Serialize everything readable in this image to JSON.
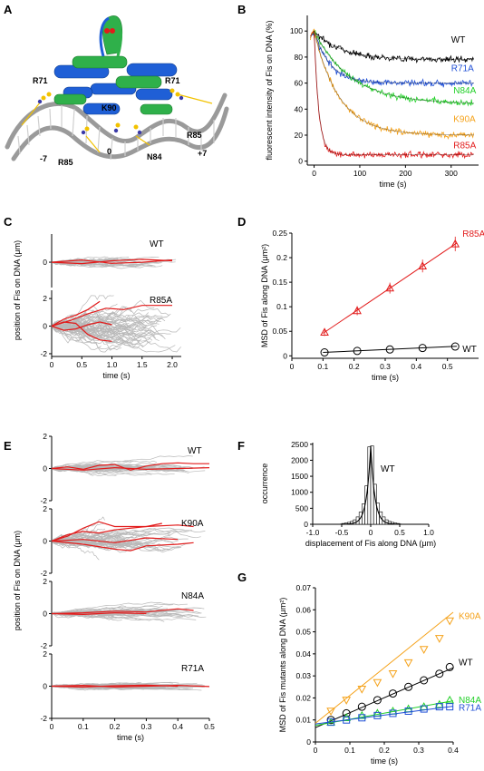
{
  "panels": {
    "A": {
      "label": "A",
      "structure_tags": [
        "R71",
        "R71",
        "K90",
        "R85",
        "-7",
        "R85",
        "0",
        "N84",
        "+7"
      ]
    },
    "B": {
      "label": "B"
    },
    "C": {
      "label": "C"
    },
    "D": {
      "label": "D"
    },
    "E": {
      "label": "E"
    },
    "F": {
      "label": "F"
    },
    "G": {
      "label": "G"
    }
  },
  "chart_data": [
    {
      "id": "B",
      "type": "line",
      "xlabel": "time (s)",
      "ylabel": "fluorescent intensity of Fis on DNA (%)",
      "xlim": [
        -15,
        360
      ],
      "ylim": [
        -3,
        112
      ],
      "xticks": [
        0,
        100,
        200,
        300
      ],
      "yticks": [
        0,
        20,
        40,
        60,
        80,
        100
      ],
      "series": [
        {
          "name": "WT",
          "color": "#000000",
          "label_x": 300,
          "label_y": 91,
          "plateau": 78,
          "tau": 60,
          "x": [
            0,
            20,
            50,
            100,
            150,
            200,
            250,
            300,
            350
          ],
          "y": [
            100,
            94,
            88,
            82,
            80,
            79,
            78,
            78,
            77
          ]
        },
        {
          "name": "R71A",
          "color": "#1f4fd6",
          "label_x": 300,
          "label_y": 69,
          "plateau": 60,
          "tau": 35,
          "x": [
            0,
            20,
            50,
            100,
            150,
            200,
            250,
            300,
            350
          ],
          "y": [
            100,
            86,
            72,
            64,
            62,
            61,
            60,
            60,
            60
          ]
        },
        {
          "name": "N84A",
          "color": "#22d028",
          "label_x": 305,
          "label_y": 52,
          "plateau": 44,
          "tau": 80,
          "x": [
            0,
            20,
            50,
            100,
            150,
            200,
            250,
            300,
            350
          ],
          "y": [
            100,
            88,
            72,
            58,
            52,
            49,
            47,
            46,
            45
          ]
        },
        {
          "name": "K90A",
          "color": "#f5a21a",
          "label_x": 305,
          "label_y": 30,
          "plateau": 20,
          "tau": 55,
          "x": [
            0,
            20,
            50,
            100,
            150,
            200,
            250,
            300,
            350
          ],
          "y": [
            100,
            70,
            45,
            32,
            27,
            24,
            22,
            21,
            20
          ]
        },
        {
          "name": "R85A",
          "color": "#e21b1b",
          "label_x": 305,
          "label_y": 10,
          "plateau": 5,
          "tau": 10,
          "x": [
            0,
            20,
            50,
            100,
            150,
            200,
            250,
            300,
            350
          ],
          "y": [
            100,
            28,
            10,
            6,
            5,
            5,
            5,
            5,
            5
          ]
        }
      ]
    },
    {
      "id": "C-WT",
      "type": "line",
      "series_label": "WT",
      "xlim": [
        0,
        2.15
      ],
      "ylim": [
        -0.9,
        1.0
      ],
      "yticks": [
        -2,
        0,
        2
      ],
      "ytick_labels": [
        "",
        "0",
        ""
      ],
      "spread": 0.12,
      "red_traces": [
        {
          "x": [
            0,
            0.5,
            1.0,
            1.5,
            2.0
          ],
          "y": [
            0,
            -0.05,
            0.05,
            0.1,
            0.05
          ]
        },
        {
          "x": [
            0,
            0.5,
            1.0,
            1.5,
            2.0
          ],
          "y": [
            0,
            0.08,
            -0.04,
            0.0,
            0.08
          ]
        }
      ]
    },
    {
      "id": "C-R85A",
      "type": "line",
      "series_label": "R85A",
      "xlabel": "time (s)",
      "ylabel": "position of Fis on DNA (μm)",
      "xlim": [
        0,
        2.15
      ],
      "ylim": [
        -2.2,
        2.6
      ],
      "xticks": [
        0,
        0.5,
        1.0,
        1.5,
        2.0
      ],
      "xtick_labels": [
        "0",
        "0.5",
        "1.0",
        "1.5",
        "2.0"
      ],
      "yticks": [
        -2,
        0,
        2
      ],
      "spread": 0.9,
      "red_traces": [
        {
          "x": [
            0,
            0.3,
            0.6,
            0.9,
            1.2,
            1.5,
            2.0
          ],
          "y": [
            0,
            0.4,
            0.9,
            1.3,
            1.2,
            1.5,
            1.5
          ]
        },
        {
          "x": [
            0,
            0.2,
            0.4,
            0.6,
            0.8,
            1.0
          ],
          "y": [
            0,
            0.3,
            0.2,
            -0.6,
            -1.0,
            -1.1
          ]
        },
        {
          "x": [
            0,
            0.2,
            0.4,
            0.6,
            0.8
          ],
          "y": [
            0,
            0.5,
            0.8,
            1.2,
            1.8
          ]
        },
        {
          "x": [
            0,
            0.2,
            0.4,
            0.6,
            0.8,
            1.0
          ],
          "y": [
            0,
            -0.3,
            -0.2,
            0.1,
            0.3,
            0.1
          ]
        }
      ]
    },
    {
      "id": "D",
      "type": "scatter",
      "xlabel": "time (s)",
      "ylabel": "MSD of Fis along DNA (μm²)",
      "xlim": [
        0,
        0.6
      ],
      "ylim": [
        -0.005,
        0.25
      ],
      "xticks": [
        0,
        0.1,
        0.2,
        0.3,
        0.4,
        0.5
      ],
      "yticks": [
        0,
        0.05,
        0.1,
        0.15,
        0.2,
        0.25
      ],
      "series": [
        {
          "name": "R85A",
          "color": "#e21b1b",
          "marker": "triangle",
          "x": [
            0.105,
            0.21,
            0.315,
            0.42,
            0.525
          ],
          "y": [
            0.048,
            0.092,
            0.138,
            0.183,
            0.228
          ],
          "fit": [
            0.003,
            0.428
          ]
        },
        {
          "name": "WT",
          "color": "#000000",
          "marker": "circle",
          "x": [
            0.105,
            0.21,
            0.315,
            0.42,
            0.525
          ],
          "y": [
            0.007,
            0.01,
            0.013,
            0.016,
            0.019
          ],
          "fit": [
            0.004,
            0.029
          ]
        }
      ]
    },
    {
      "id": "E-WT",
      "type": "line",
      "series_label": "WT",
      "xlim": [
        0,
        0.5
      ],
      "ylim": [
        -2,
        2
      ],
      "yticks": [
        -2,
        0,
        2
      ],
      "spread": 0.22,
      "red_traces": [
        {
          "x": [
            0,
            0.05,
            0.1,
            0.15,
            0.2,
            0.25,
            0.3,
            0.35,
            0.4,
            0.45,
            0.5
          ],
          "y": [
            0,
            0.1,
            -0.05,
            0.2,
            0.25,
            -0.1,
            0.15,
            0.3,
            0.35,
            0.3,
            0.3
          ]
        },
        {
          "x": [
            0,
            0.1,
            0.2,
            0.3,
            0.4,
            0.5
          ],
          "y": [
            0,
            -0.1,
            0.05,
            -0.05,
            0.0,
            0.05
          ]
        }
      ]
    },
    {
      "id": "E-K90A",
      "type": "line",
      "series_label": "K90A",
      "xlim": [
        0,
        0.5
      ],
      "ylim": [
        -2,
        2
      ],
      "yticks": [
        -2,
        0,
        2
      ],
      "spread": 0.45,
      "red_traces": [
        {
          "x": [
            0,
            0.05,
            0.1,
            0.15,
            0.2,
            0.3,
            0.4,
            0.45
          ],
          "y": [
            0,
            0.4,
            0.6,
            0.5,
            0.7,
            0.9,
            1.0,
            0.9
          ]
        },
        {
          "x": [
            0,
            0.05,
            0.1,
            0.15,
            0.2,
            0.3,
            0.35
          ],
          "y": [
            0,
            0.3,
            0.8,
            1.2,
            0.9,
            0.9,
            1.1
          ]
        },
        {
          "x": [
            0,
            0.1,
            0.2,
            0.25,
            0.3,
            0.4,
            0.45
          ],
          "y": [
            0,
            -0.2,
            -0.5,
            -0.6,
            -0.3,
            -0.2,
            -0.1
          ]
        },
        {
          "x": [
            0,
            0.1,
            0.2,
            0.3,
            0.4
          ],
          "y": [
            0,
            0.1,
            -0.1,
            0.2,
            0.1
          ]
        }
      ]
    },
    {
      "id": "E-N84A",
      "type": "line",
      "series_label": "N84A",
      "ylabel": "position of Fis on DNA (μm)",
      "xlim": [
        0,
        0.5
      ],
      "ylim": [
        -2,
        2
      ],
      "yticks": [
        -2,
        0,
        2
      ],
      "spread": 0.25,
      "red_traces": [
        {
          "x": [
            0,
            0.1,
            0.2,
            0.3,
            0.4,
            0.45
          ],
          "y": [
            0,
            0.05,
            0.15,
            0.1,
            0.3,
            0.2
          ]
        },
        {
          "x": [
            0,
            0.1,
            0.2,
            0.3
          ],
          "y": [
            0,
            -0.05,
            0.05,
            0.0
          ]
        }
      ]
    },
    {
      "id": "E-R71A",
      "type": "line",
      "series_label": "R71A",
      "xlabel": "time (s)",
      "xlim": [
        0,
        0.5
      ],
      "ylim": [
        -2,
        2
      ],
      "xticks": [
        0,
        0.1,
        0.2,
        0.3,
        0.4,
        0.5
      ],
      "xtick_labels": [
        "0",
        "0.1",
        "0.2",
        "0.3",
        "0.4",
        "0.5"
      ],
      "yticks": [
        -2,
        0,
        2
      ],
      "spread": 0.12,
      "red_traces": [
        {
          "x": [
            0,
            0.1,
            0.2,
            0.3,
            0.4,
            0.5
          ],
          "y": [
            0,
            0.05,
            -0.05,
            0.0,
            0.05,
            -0.02
          ]
        },
        {
          "x": [
            0,
            0.1,
            0.2,
            0.3,
            0.4
          ],
          "y": [
            0,
            -0.05,
            0.03,
            0.06,
            0.0
          ]
        }
      ]
    },
    {
      "id": "F",
      "type": "bar",
      "series_label": "WT",
      "xlabel": "displacement of Fis along DNA (μm)",
      "ylabel": "occurrence",
      "xlim": [
        -1.0,
        1.0
      ],
      "ylim": [
        0,
        2550
      ],
      "xticks": [
        -1.0,
        -0.5,
        0,
        0.5,
        1.0
      ],
      "xtick_labels": [
        "-1.0",
        "-0.5",
        "0",
        "0.5",
        "1.0"
      ],
      "yticks": [
        0,
        500,
        1000,
        1500,
        2000,
        2500
      ],
      "bin_width": 0.05,
      "bin_centers": [
        -0.475,
        -0.425,
        -0.375,
        -0.325,
        -0.275,
        -0.225,
        -0.175,
        -0.125,
        -0.075,
        -0.025,
        0.025,
        0.075,
        0.125,
        0.175,
        0.225,
        0.275,
        0.325,
        0.375,
        0.425,
        0.475
      ],
      "counts": [
        25,
        40,
        60,
        90,
        140,
        230,
        380,
        640,
        1200,
        2420,
        2450,
        1250,
        660,
        390,
        230,
        140,
        90,
        60,
        40,
        25
      ],
      "fit": {
        "peak": 2450,
        "width": 0.07
      }
    },
    {
      "id": "G",
      "type": "scatter",
      "xlabel": "time (s)",
      "ylabel": "MSD of Fis mutants along DNA (μm²)",
      "xlim": [
        0,
        0.4
      ],
      "ylim": [
        0,
        0.07
      ],
      "xticks": [
        0,
        0.1,
        0.2,
        0.3,
        0.4
      ],
      "yticks": [
        0,
        0.01,
        0.02,
        0.03,
        0.04,
        0.05,
        0.06,
        0.07
      ],
      "series": [
        {
          "name": "K90A",
          "color": "#f5a21a",
          "marker": "triangle-down",
          "label_y": 0.057,
          "x": [
            0.045,
            0.09,
            0.135,
            0.18,
            0.225,
            0.27,
            0.315,
            0.36,
            0.39
          ],
          "y": [
            0.014,
            0.019,
            0.024,
            0.027,
            0.031,
            0.036,
            0.042,
            0.047,
            0.055
          ],
          "fit": [
            0.0085,
            0.126
          ]
        },
        {
          "name": "WT",
          "color": "#000000",
          "marker": "circle",
          "label_y": 0.036,
          "x": [
            0.045,
            0.09,
            0.135,
            0.18,
            0.225,
            0.27,
            0.315,
            0.36,
            0.39
          ],
          "y": [
            0.01,
            0.013,
            0.016,
            0.019,
            0.022,
            0.025,
            0.028,
            0.031,
            0.034
          ],
          "fit": [
            0.0065,
            0.068
          ]
        },
        {
          "name": "N84A",
          "color": "#22d028",
          "marker": "triangle",
          "label_y": 0.019,
          "x": [
            0.045,
            0.09,
            0.135,
            0.18,
            0.225,
            0.27,
            0.315,
            0.36,
            0.39
          ],
          "y": [
            0.009,
            0.011,
            0.012,
            0.013,
            0.014,
            0.015,
            0.016,
            0.017,
            0.019
          ],
          "fit": [
            0.0075,
            0.028
          ]
        },
        {
          "name": "R71A",
          "color": "#1f4fd6",
          "marker": "square",
          "label_y": 0.0155,
          "x": [
            0.045,
            0.09,
            0.135,
            0.18,
            0.225,
            0.27,
            0.315,
            0.36,
            0.39
          ],
          "y": [
            0.009,
            0.01,
            0.011,
            0.012,
            0.013,
            0.014,
            0.015,
            0.016,
            0.016
          ],
          "fit": [
            0.0082,
            0.02
          ]
        }
      ]
    }
  ]
}
